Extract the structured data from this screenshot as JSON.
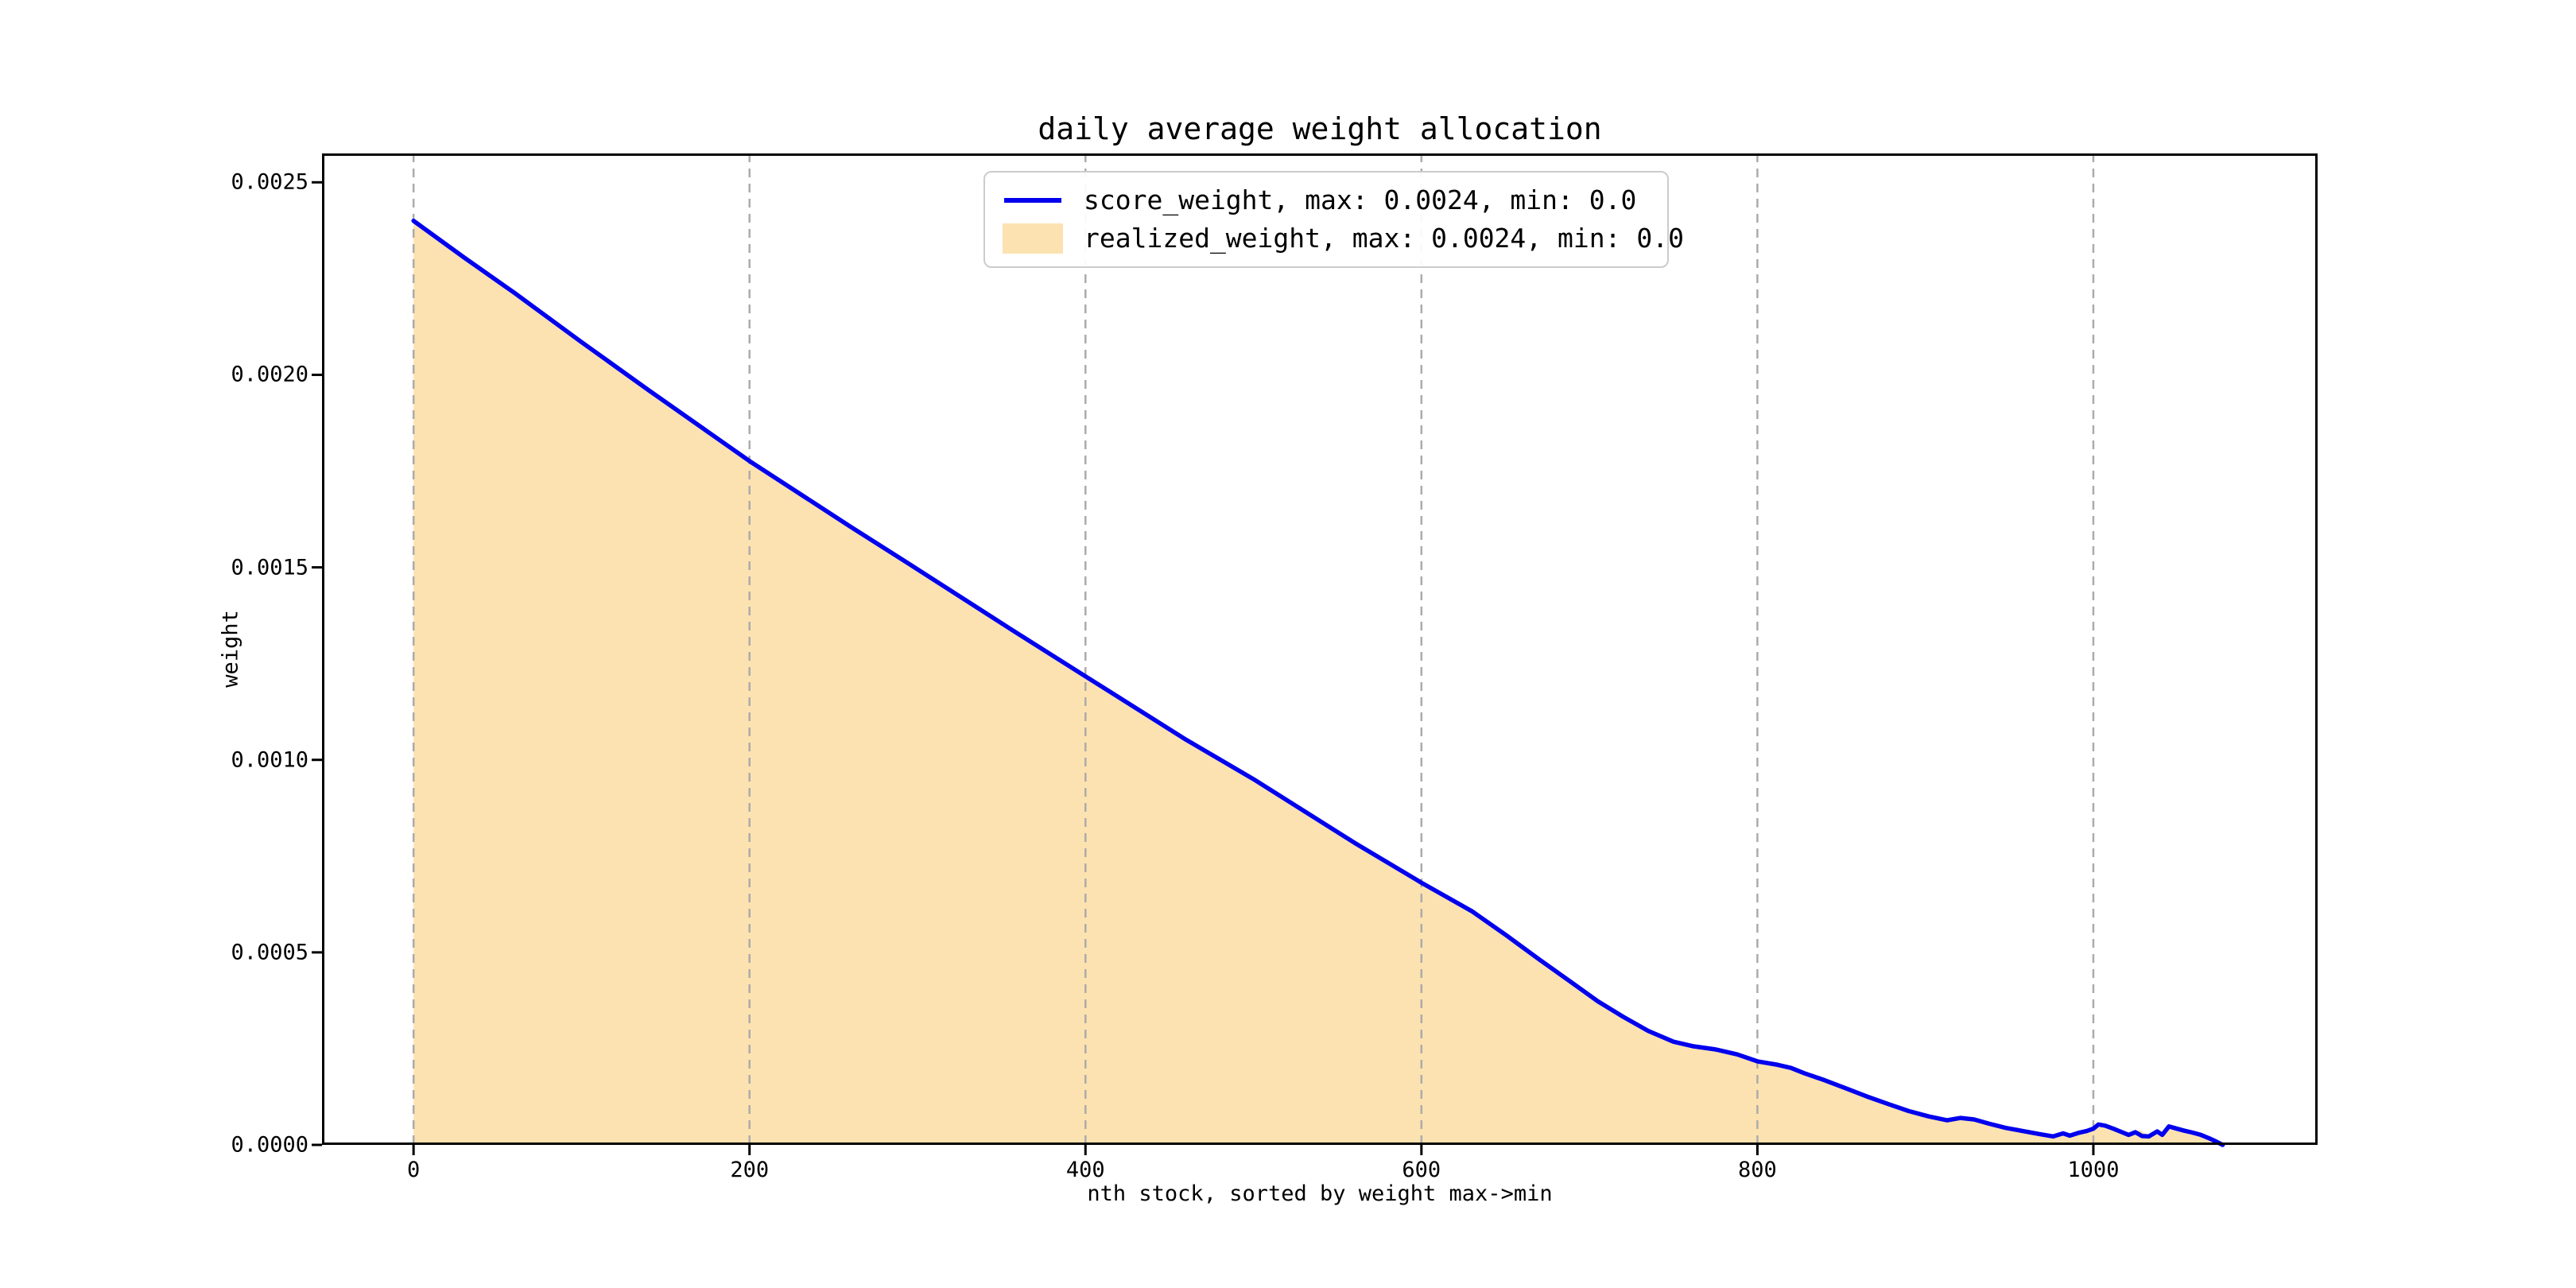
{
  "figure": {
    "background": "#ffffff"
  },
  "chart_data": {
    "type": "area",
    "title": "daily average weight allocation",
    "xlabel": "nth stock, sorted by weight max->min",
    "ylabel": "weight",
    "xlim": [
      -54.5,
      1133.5
    ],
    "ylim": [
      0,
      0.002575
    ],
    "grid": {
      "axis": "x",
      "style": "dashed",
      "color": "#ababab"
    },
    "legend": {
      "position": "upper-center",
      "border_color": "#cccccc",
      "background": "#ffffff"
    },
    "axis_color": "#000000",
    "x_ticks": [
      {
        "v": 0,
        "label": "0"
      },
      {
        "v": 200,
        "label": "200"
      },
      {
        "v": 400,
        "label": "400"
      },
      {
        "v": 600,
        "label": "600"
      },
      {
        "v": 800,
        "label": "800"
      },
      {
        "v": 1000,
        "label": "1000"
      }
    ],
    "y_ticks": [
      {
        "v": 0.0,
        "label": "0.0000"
      },
      {
        "v": 0.0005,
        "label": "0.0005"
      },
      {
        "v": 0.001,
        "label": "0.0010"
      },
      {
        "v": 0.0015,
        "label": "0.0015"
      },
      {
        "v": 0.002,
        "label": "0.0020"
      },
      {
        "v": 0.0025,
        "label": "0.0025"
      }
    ],
    "series": [
      {
        "name": "score_weight, max: 0.0024, min: 0.0",
        "type": "line",
        "color": "#0000ee",
        "max": 0.0024,
        "min": 0.0,
        "points": [
          [
            0,
            0.0024
          ],
          [
            30,
            0.002305
          ],
          [
            60,
            0.002213
          ],
          [
            100,
            0.002085
          ],
          [
            140,
            0.00196
          ],
          [
            200,
            0.001776
          ],
          [
            260,
            0.001606
          ],
          [
            300,
            0.001495
          ],
          [
            360,
            0.001327
          ],
          [
            400,
            0.001217
          ],
          [
            460,
            0.001052
          ],
          [
            500,
            0.00095
          ],
          [
            560,
            0.000785
          ],
          [
            600,
            0.000681
          ],
          [
            630,
            0.000607
          ],
          [
            650,
            0.000546
          ],
          [
            670,
            0.000482
          ],
          [
            690,
            0.00042
          ],
          [
            705,
            0.000373
          ],
          [
            720,
            0.000333
          ],
          [
            735,
            0.000296
          ],
          [
            750,
            0.000268
          ],
          [
            762,
            0.000256
          ],
          [
            775,
            0.000248
          ],
          [
            788,
            0.000235
          ],
          [
            800,
            0.000217
          ],
          [
            812,
            0.000208
          ],
          [
            820,
            0.0002
          ],
          [
            828,
            0.000186
          ],
          [
            840,
            0.000168
          ],
          [
            852,
            0.000148
          ],
          [
            865,
            0.000126
          ],
          [
            878,
            0.000106
          ],
          [
            890,
            8.8e-05
          ],
          [
            902,
            7.4e-05
          ],
          [
            913,
            6.4e-05
          ],
          [
            921,
            7e-05
          ],
          [
            929,
            6.6e-05
          ],
          [
            938,
            5.5e-05
          ],
          [
            948,
            4.4e-05
          ],
          [
            958,
            3.6e-05
          ],
          [
            968,
            2.8e-05
          ],
          [
            976,
            2.2e-05
          ],
          [
            982,
            3e-05
          ],
          [
            986,
            2.4e-05
          ],
          [
            991,
            3.1e-05
          ],
          [
            996,
            3.6e-05
          ],
          [
            1000,
            4.2e-05
          ],
          [
            1003,
            5.3e-05
          ],
          [
            1007,
            5e-05
          ],
          [
            1012,
            4.2e-05
          ],
          [
            1017,
            3.3e-05
          ],
          [
            1021,
            2.6e-05
          ],
          [
            1025,
            3.3e-05
          ],
          [
            1029,
            2.3e-05
          ],
          [
            1033,
            2.2e-05
          ],
          [
            1038,
            3.5e-05
          ],
          [
            1041,
            2.6e-05
          ],
          [
            1045,
            4.8e-05
          ],
          [
            1049,
            4.3e-05
          ],
          [
            1054,
            3.7e-05
          ],
          [
            1059,
            3.2e-05
          ],
          [
            1064,
            2.6e-05
          ],
          [
            1069,
            1.7e-05
          ],
          [
            1073,
            9e-06
          ],
          [
            1077,
            0.0
          ]
        ]
      },
      {
        "name": "realized_weight, max: 0.0024, min: 0.0",
        "type": "area",
        "fill_color": "#fde2b1",
        "max": 0.0024,
        "min": 0.0,
        "points": [
          [
            0,
            0.0024
          ],
          [
            30,
            0.002305
          ],
          [
            60,
            0.002213
          ],
          [
            100,
            0.002085
          ],
          [
            140,
            0.00196
          ],
          [
            200,
            0.001776
          ],
          [
            260,
            0.001606
          ],
          [
            300,
            0.001495
          ],
          [
            360,
            0.001327
          ],
          [
            400,
            0.001217
          ],
          [
            460,
            0.001052
          ],
          [
            500,
            0.00095
          ],
          [
            560,
            0.000785
          ],
          [
            600,
            0.000681
          ],
          [
            630,
            0.000607
          ],
          [
            650,
            0.000546
          ],
          [
            670,
            0.000482
          ],
          [
            690,
            0.00042
          ],
          [
            705,
            0.000373
          ],
          [
            720,
            0.000333
          ],
          [
            735,
            0.000296
          ],
          [
            750,
            0.000268
          ],
          [
            762,
            0.000256
          ],
          [
            775,
            0.000248
          ],
          [
            788,
            0.000235
          ],
          [
            800,
            0.000217
          ],
          [
            812,
            0.000208
          ],
          [
            820,
            0.0002
          ],
          [
            828,
            0.000186
          ],
          [
            840,
            0.000168
          ],
          [
            852,
            0.000148
          ],
          [
            865,
            0.000126
          ],
          [
            878,
            0.000106
          ],
          [
            890,
            8.8e-05
          ],
          [
            902,
            7.4e-05
          ],
          [
            913,
            6.4e-05
          ],
          [
            921,
            7e-05
          ],
          [
            929,
            6.6e-05
          ],
          [
            938,
            5.5e-05
          ],
          [
            948,
            4.4e-05
          ],
          [
            958,
            3.6e-05
          ],
          [
            968,
            2.8e-05
          ],
          [
            976,
            2.2e-05
          ],
          [
            982,
            3e-05
          ],
          [
            986,
            2.4e-05
          ],
          [
            991,
            3.1e-05
          ],
          [
            996,
            3.6e-05
          ],
          [
            1000,
            4e-05
          ],
          [
            1005,
            4.8e-05
          ],
          [
            1010,
            4e-05
          ],
          [
            1015,
            3.2e-05
          ],
          [
            1020,
            3e-05
          ],
          [
            1024,
            3.5e-05
          ],
          [
            1028,
            3.8e-05
          ],
          [
            1032,
            2.7e-05
          ],
          [
            1037,
            3.2e-05
          ],
          [
            1041,
            2.7e-05
          ],
          [
            1045,
            4.2e-05
          ],
          [
            1050,
            3.8e-05
          ],
          [
            1055,
            3.4e-05
          ],
          [
            1060,
            2.8e-05
          ],
          [
            1065,
            2.1e-05
          ],
          [
            1070,
            1.3e-05
          ],
          [
            1075,
            5e-06
          ],
          [
            1079,
            0.0
          ]
        ]
      }
    ]
  }
}
